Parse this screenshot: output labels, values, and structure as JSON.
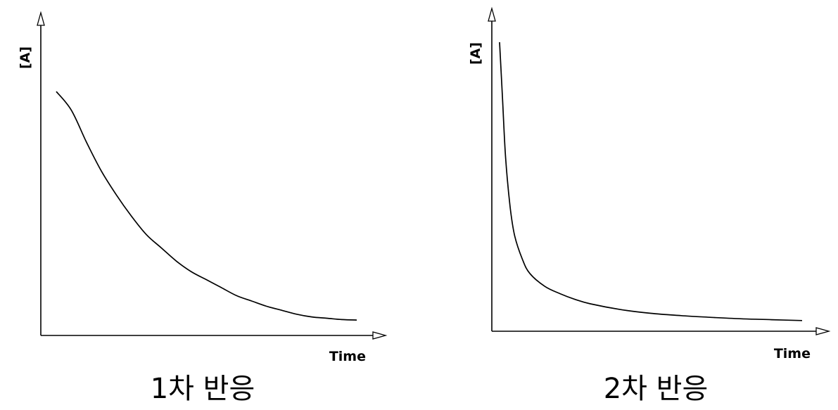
{
  "chart_data": [
    {
      "type": "line",
      "title": "1차 반응",
      "xlabel": "Time",
      "ylabel": "[A]",
      "xlim": [
        0,
        10
      ],
      "ylim": [
        0,
        1
      ],
      "grid": false,
      "ticks": false,
      "series": [
        {
          "x": [
            0,
            0.5,
            1,
            1.5,
            2,
            2.5,
            3,
            3.5,
            4,
            4.5,
            5,
            5.5,
            6,
            6.5,
            7,
            7.5,
            8,
            8.5,
            9,
            9.5,
            10
          ],
          "y": [
            0.92,
            0.85,
            0.73,
            0.62,
            0.53,
            0.45,
            0.38,
            0.33,
            0.28,
            0.24,
            0.21,
            0.18,
            0.15,
            0.13,
            0.11,
            0.095,
            0.08,
            0.07,
            0.065,
            0.06,
            0.058
          ]
        }
      ]
    },
    {
      "type": "line",
      "title": "2차 반응",
      "xlabel": "Time",
      "ylabel": "[A]",
      "xlim": [
        0,
        10
      ],
      "ylim": [
        0,
        1
      ],
      "grid": false,
      "ticks": false,
      "series": [
        {
          "x": [
            0,
            0.1,
            0.2,
            0.35,
            0.5,
            0.75,
            1,
            1.5,
            2,
            2.5,
            3,
            4,
            5,
            6,
            7,
            8,
            9,
            10
          ],
          "y": [
            1.0,
            0.8,
            0.6,
            0.43,
            0.33,
            0.25,
            0.2,
            0.155,
            0.13,
            0.11,
            0.095,
            0.075,
            0.062,
            0.054,
            0.048,
            0.043,
            0.04,
            0.037
          ]
        }
      ]
    }
  ]
}
